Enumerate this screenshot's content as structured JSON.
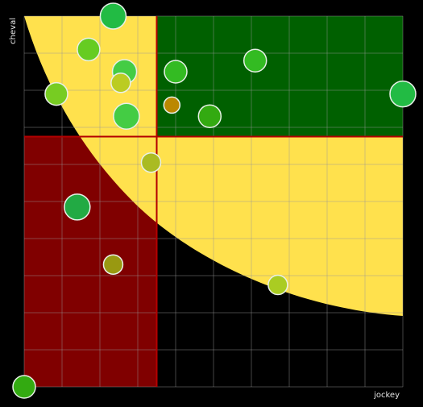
{
  "chart_data": {
    "type": "scatter",
    "xlabel": "jockey",
    "ylabel": "cheval",
    "xlim": [
      0,
      1
    ],
    "ylim": [
      0,
      1
    ],
    "grid": true,
    "grid_divisions": 10,
    "quadrant_thresholds": {
      "x": 0.35,
      "y": 0.675
    },
    "regions": [
      {
        "name": "top-right",
        "color": "#006000"
      },
      {
        "name": "bottom-left",
        "color": "#800000"
      },
      {
        "name": "curve-band",
        "color": "#ffe14d"
      }
    ],
    "threshold_line_color": "#b30000",
    "points": [
      {
        "x": 0.235,
        "y": 1.0,
        "size": 16,
        "color": "#22bb44"
      },
      {
        "x": 0.17,
        "y": 0.91,
        "size": 14,
        "color": "#66cc22"
      },
      {
        "x": 0.265,
        "y": 0.85,
        "size": 15,
        "color": "#44cc44"
      },
      {
        "x": 0.255,
        "y": 0.82,
        "size": 12,
        "color": "#bbcc22"
      },
      {
        "x": 0.4,
        "y": 0.85,
        "size": 14,
        "color": "#33bb22"
      },
      {
        "x": 0.61,
        "y": 0.88,
        "size": 14,
        "color": "#33bb22"
      },
      {
        "x": 0.085,
        "y": 0.79,
        "size": 14,
        "color": "#77cc22"
      },
      {
        "x": 0.39,
        "y": 0.76,
        "size": 10,
        "color": "#bb8800"
      },
      {
        "x": 0.27,
        "y": 0.73,
        "size": 16,
        "color": "#44cc44"
      },
      {
        "x": 0.49,
        "y": 0.73,
        "size": 14,
        "color": "#33aa11"
      },
      {
        "x": 1.0,
        "y": 0.79,
        "size": 16,
        "color": "#22bb44"
      },
      {
        "x": 0.335,
        "y": 0.605,
        "size": 12,
        "color": "#aabb22"
      },
      {
        "x": 0.14,
        "y": 0.485,
        "size": 16,
        "color": "#22aa44"
      },
      {
        "x": 0.235,
        "y": 0.33,
        "size": 12,
        "color": "#999911"
      },
      {
        "x": 0.67,
        "y": 0.275,
        "size": 12,
        "color": "#aacc22"
      },
      {
        "x": 0.0,
        "y": 0.0,
        "size": 14,
        "color": "#33aa11"
      }
    ]
  }
}
